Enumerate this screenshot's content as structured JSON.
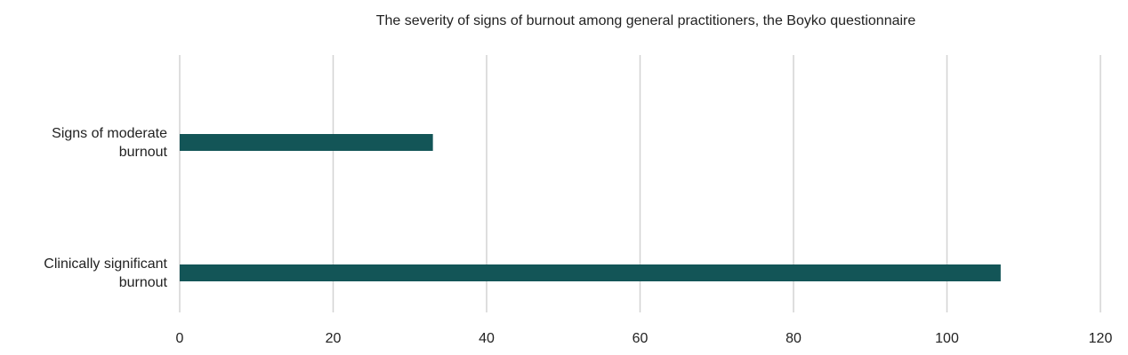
{
  "chart_data": {
    "type": "bar",
    "orientation": "horizontal",
    "title": "The severity of signs of burnout among general practitioners, the Boyko questionnaire",
    "categories": [
      "Signs of moderate burnout",
      "Clinically significant burnout"
    ],
    "values": [
      33,
      107
    ],
    "color": "#135557",
    "xlim": [
      0,
      120
    ],
    "xticks": [
      0,
      20,
      40,
      60,
      80,
      100,
      120
    ],
    "grid": true
  }
}
